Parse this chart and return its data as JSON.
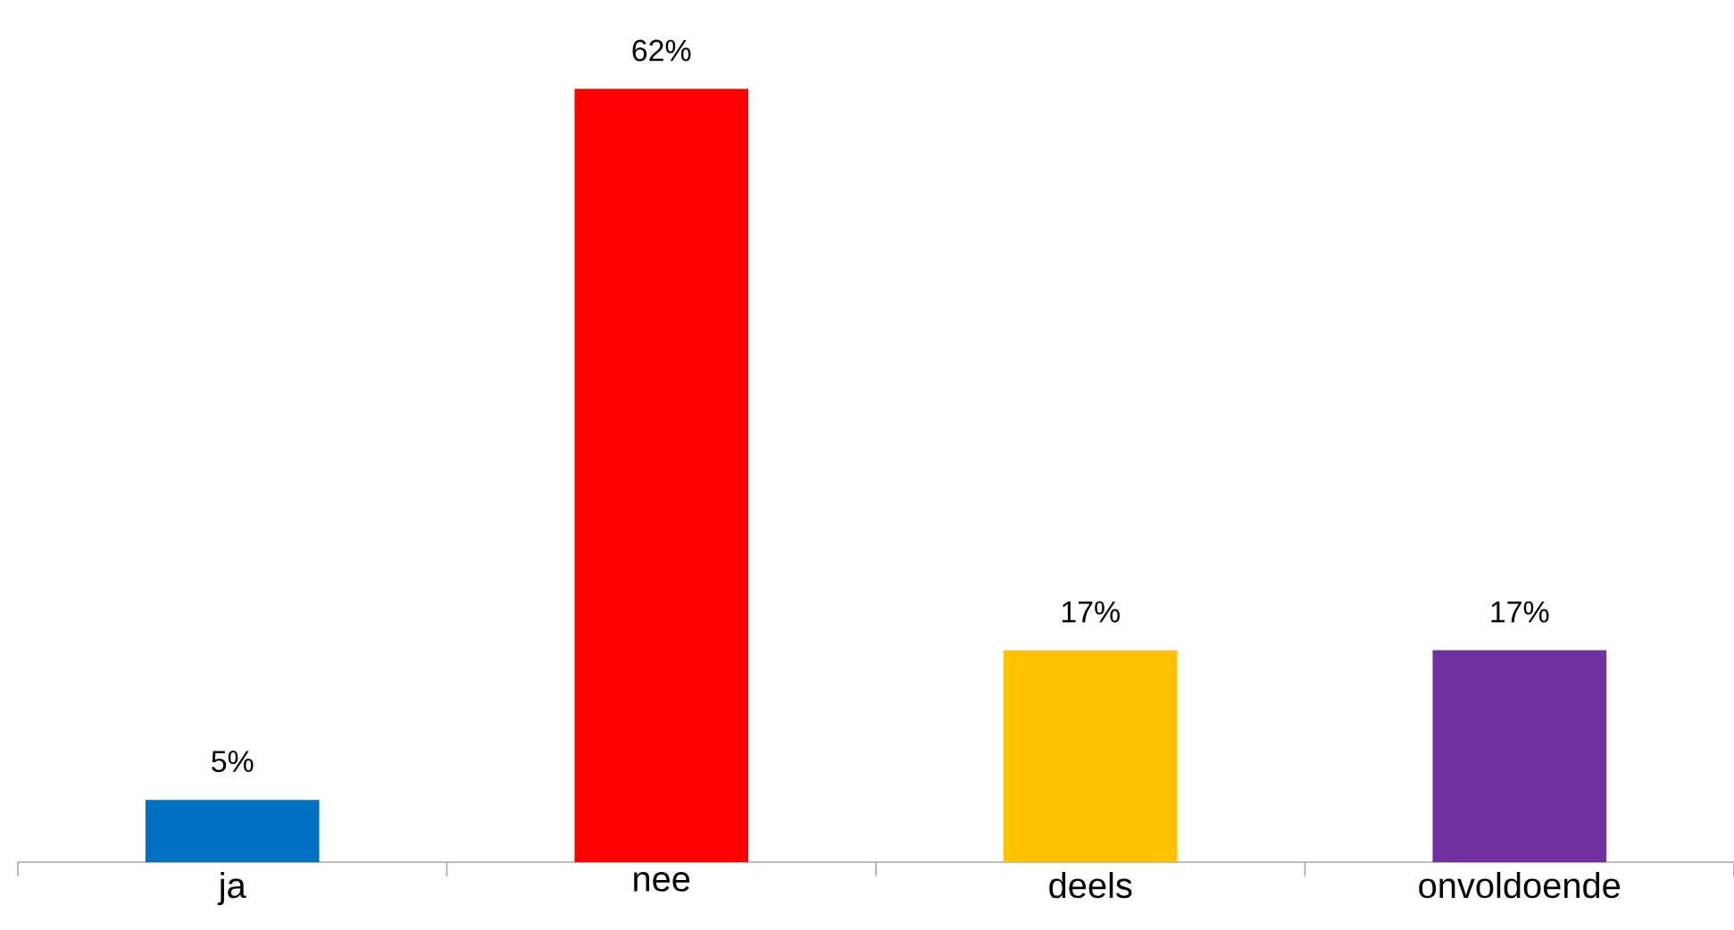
{
  "chart_data": {
    "type": "bar",
    "categories": [
      "ja",
      "nee",
      "deels",
      "onvoldoende"
    ],
    "values": [
      5,
      62,
      17,
      17
    ],
    "colors": [
      "#0070c0",
      "#ff0000",
      "#ffc000",
      "#7030a0"
    ],
    "value_labels": [
      "5%",
      "62%",
      "17%",
      "17%"
    ]
  }
}
